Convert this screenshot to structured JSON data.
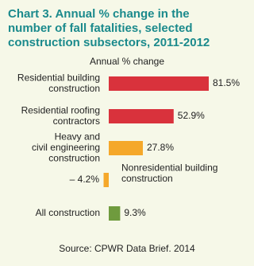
{
  "chart_data": {
    "type": "bar",
    "orientation": "horizontal",
    "title": [
      "Chart 3. Annual % change in the",
      "number of fall fatalities, selected",
      "construction subsectors, 2011-2012"
    ],
    "axis_label": "Annual % change",
    "categories": [
      [
        "Residential building",
        "construction"
      ],
      [
        "Residential roofing",
        "contractors"
      ],
      [
        "Heavy and",
        "civil engineering",
        "construction"
      ],
      [
        "Nonresidential building",
        "construction"
      ],
      [
        "All construction"
      ]
    ],
    "values": [
      81.5,
      52.9,
      27.8,
      -4.2,
      9.3
    ],
    "value_labels": [
      "81.5%",
      "52.9%",
      "27.8%",
      "– 4.2%",
      "9.3%"
    ],
    "colors": [
      "#d9323c",
      "#d9323c",
      "#f5a82a",
      "#f5a82a",
      "#6f9b3e"
    ],
    "source": "Source: CPWR Data Brief. 2014"
  }
}
